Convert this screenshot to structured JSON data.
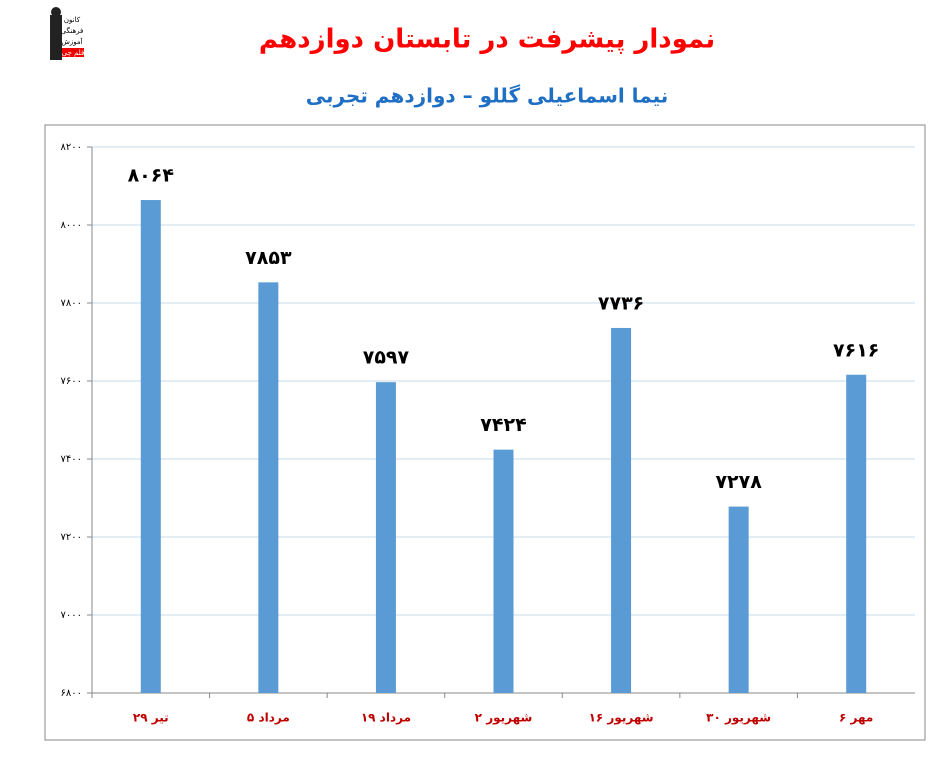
{
  "logo": {
    "lines": [
      "کانون",
      "فرهنگی",
      "آموزش",
      "قلم چی"
    ]
  },
  "chart_data": {
    "type": "bar",
    "title": "نمودار پیشرفت در تابستان دوازدهم",
    "subtitle": "نیما اسماعیلی گللو – دوازدهم تجربی",
    "categories": [
      "۲۹ تیر",
      "۵ مرداد",
      "۱۹ مرداد",
      "۲ شهریور",
      "۱۶ شهریور",
      "۳۰ شهریور",
      "۶ مهر"
    ],
    "values": [
      8064,
      7853,
      7597,
      7424,
      7736,
      7278,
      7616
    ],
    "value_labels": [
      "۸۰۶۴",
      "۷۸۵۳",
      "۷۵۹۷",
      "۷۴۲۴",
      "۷۷۳۶",
      "۷۲۷۸",
      "۷۶۱۶"
    ],
    "color": "#5b9bd5",
    "ylim": [
      6800,
      8200
    ],
    "yticks": [
      {
        "value": 6800,
        "label": "۶۸۰۰"
      },
      {
        "value": 7000,
        "label": "۷۰۰۰"
      },
      {
        "value": 7200,
        "label": "۷۲۰۰"
      },
      {
        "value": 7400,
        "label": "۷۴۰۰"
      },
      {
        "value": 7600,
        "label": "۷۶۰۰"
      },
      {
        "value": 7800,
        "label": "۷۸۰۰"
      },
      {
        "value": 8000,
        "label": "۸۰۰۰"
      },
      {
        "value": 8200,
        "label": "۸۲۰۰"
      }
    ],
    "grid": true
  }
}
